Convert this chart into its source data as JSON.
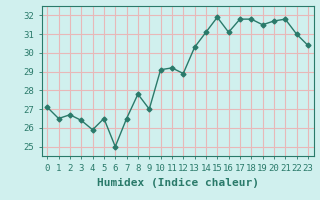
{
  "x": [
    0,
    1,
    2,
    3,
    4,
    5,
    6,
    7,
    8,
    9,
    10,
    11,
    12,
    13,
    14,
    15,
    16,
    17,
    18,
    19,
    20,
    21,
    22,
    23
  ],
  "y": [
    27.1,
    26.5,
    26.7,
    26.4,
    25.9,
    26.5,
    25.0,
    26.5,
    27.8,
    27.0,
    29.1,
    29.2,
    28.9,
    30.3,
    31.1,
    31.9,
    31.1,
    31.8,
    31.8,
    31.5,
    31.7,
    31.8,
    31.0,
    30.4
  ],
  "line_color": "#2a7a6a",
  "marker": "D",
  "marker_size": 2.5,
  "bg_color": "#d0f0ee",
  "grid_color": "#e8b8b8",
  "xlabel": "Humidex (Indice chaleur)",
  "ylim": [
    24.5,
    32.5
  ],
  "xlim": [
    -0.5,
    23.5
  ],
  "yticks": [
    25,
    26,
    27,
    28,
    29,
    30,
    31,
    32
  ],
  "xticks": [
    0,
    1,
    2,
    3,
    4,
    5,
    6,
    7,
    8,
    9,
    10,
    11,
    12,
    13,
    14,
    15,
    16,
    17,
    18,
    19,
    20,
    21,
    22,
    23
  ],
  "tick_fontsize": 6.5,
  "label_fontsize": 8
}
